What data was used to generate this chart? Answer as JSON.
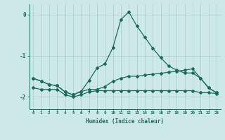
{
  "xlabel": "Humidex (Indice chaleur)",
  "bg_color": "#cce8e8",
  "line_color": "#1a6b5a",
  "grid_color": "#aacccc",
  "x": [
    0,
    1,
    2,
    3,
    4,
    5,
    6,
    7,
    8,
    9,
    10,
    11,
    12,
    13,
    14,
    15,
    16,
    17,
    18,
    19,
    20,
    21,
    22,
    23
  ],
  "line_peak": [
    -1.55,
    -1.62,
    -1.7,
    -1.73,
    -1.88,
    -1.95,
    -1.87,
    -1.6,
    -1.3,
    -1.2,
    -0.8,
    -0.12,
    0.06,
    -0.28,
    -0.55,
    -0.82,
    -1.05,
    -1.25,
    -1.35,
    -1.42,
    -1.42,
    -1.55,
    -1.78,
    -1.9
  ],
  "line_slope": [
    -1.55,
    -1.62,
    -1.7,
    -1.73,
    -1.88,
    -1.95,
    -1.87,
    -1.82,
    -1.82,
    -1.75,
    -1.62,
    -1.55,
    -1.5,
    -1.5,
    -1.47,
    -1.45,
    -1.43,
    -1.4,
    -1.38,
    -1.35,
    -1.32,
    -1.55,
    -1.78,
    -1.9
  ],
  "line_flat": [
    -1.78,
    -1.82,
    -1.82,
    -1.82,
    -1.95,
    -2.0,
    -1.95,
    -1.88,
    -1.85,
    -1.85,
    -1.85,
    -1.85,
    -1.85,
    -1.85,
    -1.85,
    -1.85,
    -1.85,
    -1.85,
    -1.85,
    -1.85,
    -1.85,
    -1.9,
    -1.9,
    -1.92
  ],
  "ylim": [
    -2.3,
    0.25
  ],
  "xlim": [
    -0.5,
    23.5
  ],
  "yticks": [
    0,
    -1,
    -2
  ],
  "xticks": [
    0,
    1,
    2,
    3,
    4,
    5,
    6,
    7,
    8,
    9,
    10,
    11,
    12,
    13,
    14,
    15,
    16,
    17,
    18,
    19,
    20,
    21,
    22,
    23
  ]
}
